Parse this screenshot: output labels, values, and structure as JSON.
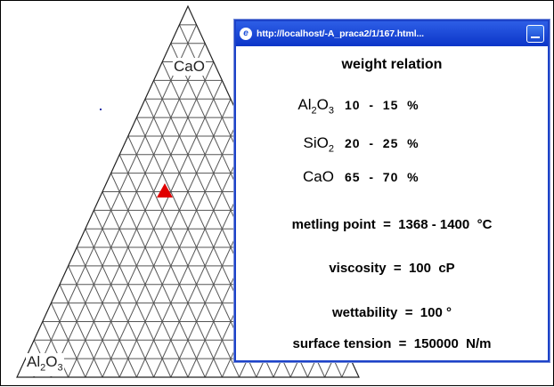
{
  "diagram": {
    "vertex_labels": {
      "top": {
        "text": "CaO"
      },
      "bottom_left": {
        "text": "Al",
        "sub": "2",
        "text2": "O",
        "sub2": "3"
      }
    },
    "marker": {
      "shape": "triangle",
      "color": "#e00000"
    },
    "grid_divisions": 20
  },
  "popup": {
    "url": "http://localhost/-A_praca2/1/167.html...",
    "heading": "weight relation",
    "components": [
      {
        "name": "Al",
        "sub": "2",
        "name2": "O",
        "sub2": "3",
        "range": "10  -  15  %"
      },
      {
        "name": "SiO",
        "sub": "2",
        "name2": "",
        "sub2": "",
        "range": "20  -  25  %"
      },
      {
        "name": "CaO",
        "sub": "",
        "name2": "",
        "sub2": "",
        "range": "65  -  70  %"
      }
    ],
    "properties": {
      "melting_point": "metling point  =  1368 - 1400  °C",
      "viscosity": "viscosity  =  100  cP",
      "wettability": "wettability  =  100 °",
      "surface_tension": "surface tension  =  150000  N/m"
    }
  }
}
